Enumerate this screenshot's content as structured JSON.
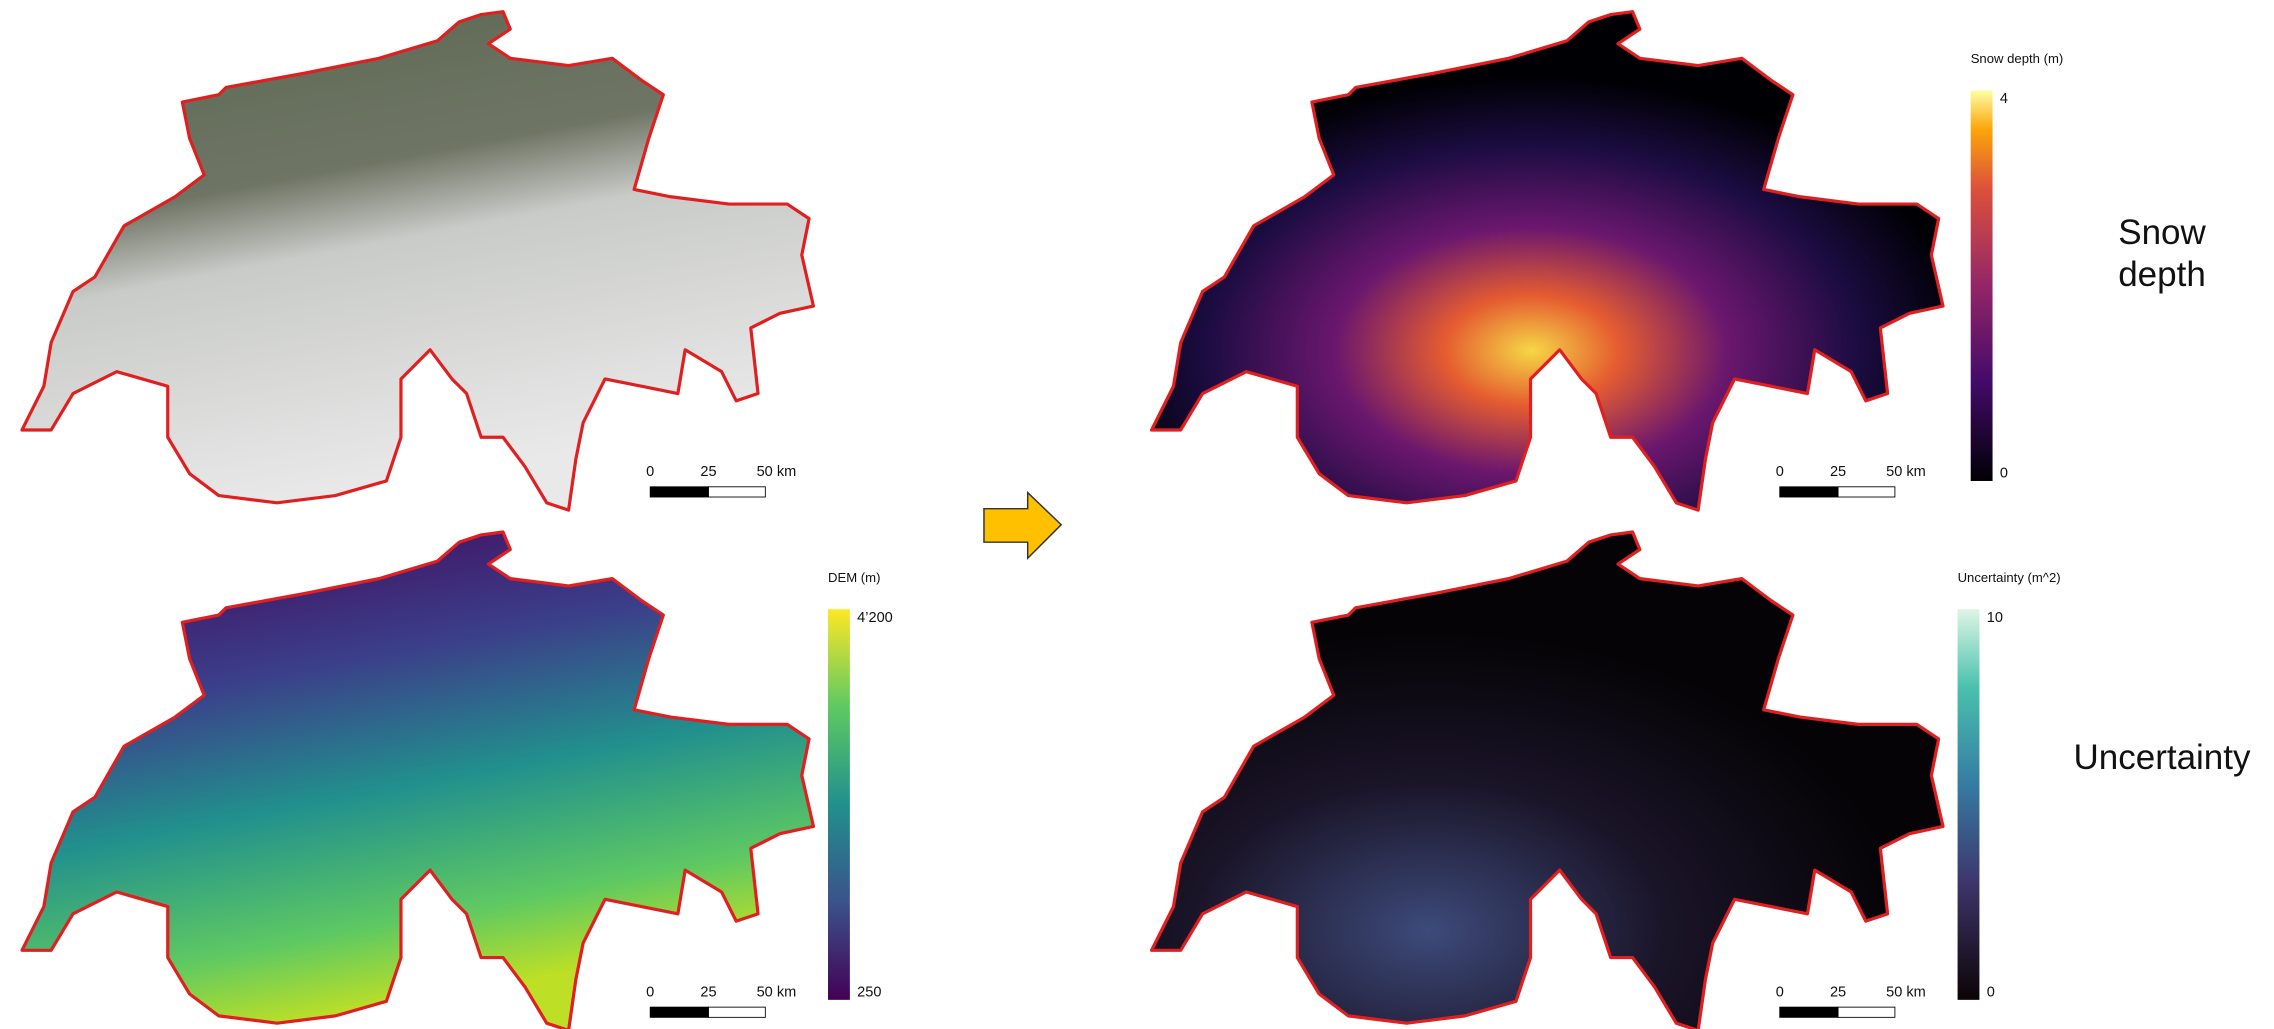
{
  "panels": [
    {
      "scale_bar": [
        "0",
        "25",
        "50 km"
      ]
    },
    {
      "scale_bar": [
        "0",
        "25",
        "50 km"
      ]
    },
    {
      "scale_bar": [
        "0",
        "25",
        "50 km"
      ]
    },
    {
      "scale_bar": [
        "0",
        "25",
        "50 km"
      ]
    }
  ],
  "colorbars": [
    {
      "title": "DEM (m)",
      "max": "4’200",
      "min": "250"
    },
    {
      "title": "Snow depth (m)",
      "max": "4",
      "min": "0"
    },
    {
      "title": "Uncertainty (m^2)",
      "max": "10",
      "min": "0"
    }
  ],
  "row_labels": [
    "Snow depth",
    "Uncertainty"
  ]
}
